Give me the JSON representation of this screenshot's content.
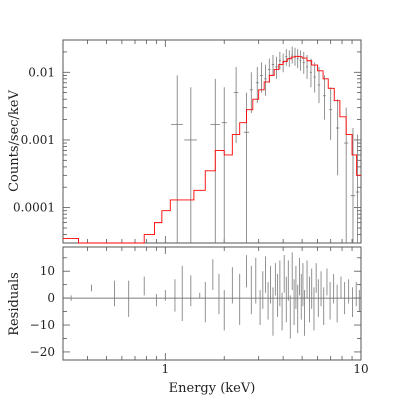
{
  "chart_data": [
    {
      "type": "scatter",
      "panel": "top",
      "xscale": "log",
      "yscale": "log",
      "xlim": [
        0.3,
        10
      ],
      "ylim": [
        3e-05,
        0.03
      ],
      "ylabel": "Counts/sec/keV",
      "yticks": [
        0.0001,
        0.001,
        0.01
      ],
      "ytick_labels": [
        "0.0001",
        "0.001",
        "0.01"
      ],
      "series": [
        {
          "kind": "data-points",
          "points": [
            {
              "x": 1.15,
              "y": 0.0017,
              "xerr": 0.08,
              "yup": 0.009,
              "ydn": 3e-05
            },
            {
              "x": 1.35,
              "y": 0.001,
              "xerr": 0.1,
              "yup": 0.006,
              "ydn": 3e-05
            },
            {
              "x": 1.8,
              "y": 0.0017,
              "xerr": 0.1,
              "yup": 0.008,
              "ydn": 3e-05
            },
            {
              "x": 2.0,
              "y": 0.0018,
              "xerr": 0.06,
              "yup": 0.006,
              "ydn": 3e-05
            },
            {
              "x": 2.3,
              "y": 0.005,
              "xerr": 0.06,
              "yup": 0.012,
              "ydn": 0.0009
            },
            {
              "x": 2.6,
              "y": 0.0013,
              "xerr": 0.08,
              "yup": 0.005,
              "ydn": 3e-05
            },
            {
              "x": 2.75,
              "y": 0.0055,
              "xerr": 0.05,
              "yup": 0.01,
              "ydn": 0.0025
            },
            {
              "x": 2.95,
              "y": 0.007,
              "xerr": 0.05,
              "yup": 0.012,
              "ydn": 0.0035
            },
            {
              "x": 3.1,
              "y": 0.009,
              "xerr": 0.05,
              "yup": 0.014,
              "ydn": 0.005
            },
            {
              "x": 3.25,
              "y": 0.008,
              "xerr": 0.05,
              "yup": 0.013,
              "ydn": 0.0045
            },
            {
              "x": 3.4,
              "y": 0.011,
              "xerr": 0.05,
              "yup": 0.016,
              "ydn": 0.007
            },
            {
              "x": 3.55,
              "y": 0.013,
              "xerr": 0.05,
              "yup": 0.018,
              "ydn": 0.009
            },
            {
              "x": 3.7,
              "y": 0.012,
              "xerr": 0.05,
              "yup": 0.017,
              "ydn": 0.008
            },
            {
              "x": 3.85,
              "y": 0.015,
              "xerr": 0.05,
              "yup": 0.02,
              "ydn": 0.011
            },
            {
              "x": 4.0,
              "y": 0.014,
              "xerr": 0.05,
              "yup": 0.019,
              "ydn": 0.01
            },
            {
              "x": 4.15,
              "y": 0.017,
              "xerr": 0.05,
              "yup": 0.022,
              "ydn": 0.0125
            },
            {
              "x": 4.3,
              "y": 0.016,
              "xerr": 0.05,
              "yup": 0.021,
              "ydn": 0.012
            },
            {
              "x": 4.45,
              "y": 0.018,
              "xerr": 0.05,
              "yup": 0.024,
              "ydn": 0.0135
            },
            {
              "x": 4.6,
              "y": 0.017,
              "xerr": 0.05,
              "yup": 0.023,
              "ydn": 0.0125
            },
            {
              "x": 4.75,
              "y": 0.016,
              "xerr": 0.05,
              "yup": 0.022,
              "ydn": 0.0115
            },
            {
              "x": 4.9,
              "y": 0.015,
              "xerr": 0.05,
              "yup": 0.021,
              "ydn": 0.0105
            },
            {
              "x": 5.1,
              "y": 0.014,
              "xerr": 0.06,
              "yup": 0.02,
              "ydn": 0.0095
            },
            {
              "x": 5.3,
              "y": 0.012,
              "xerr": 0.06,
              "yup": 0.018,
              "ydn": 0.008
            },
            {
              "x": 5.55,
              "y": 0.01,
              "xerr": 0.07,
              "yup": 0.016,
              "ydn": 0.006
            },
            {
              "x": 5.8,
              "y": 0.0085,
              "xerr": 0.08,
              "yup": 0.014,
              "ydn": 0.005
            },
            {
              "x": 6.1,
              "y": 0.0065,
              "xerr": 0.09,
              "yup": 0.012,
              "ydn": 0.0035
            },
            {
              "x": 6.5,
              "y": 0.0045,
              "xerr": 0.1,
              "yup": 0.009,
              "ydn": 0.002
            },
            {
              "x": 7.0,
              "y": 0.0028,
              "xerr": 0.12,
              "yup": 0.006,
              "ydn": 0.001
            },
            {
              "x": 7.6,
              "y": 0.0015,
              "xerr": 0.15,
              "yup": 0.004,
              "ydn": 0.0003
            },
            {
              "x": 8.4,
              "y": 0.0009,
              "xerr": 0.2,
              "yup": 0.003,
              "ydn": 3e-05
            },
            {
              "x": 9.1,
              "y": 0.00015,
              "xerr": 0.25,
              "yup": 0.0015,
              "ydn": 3e-05
            },
            {
              "x": 9.6,
              "y": 0.00017,
              "xerr": 0.2,
              "yup": 0.0012,
              "ydn": 3e-05
            }
          ]
        },
        {
          "kind": "model",
          "color": "#ff0000",
          "edges": [
            0.3,
            0.36,
            0.5,
            0.78,
            0.88,
            0.96,
            1.06,
            1.4,
            1.6,
            1.8,
            2.0,
            2.2,
            2.4,
            2.6,
            2.8,
            3.0,
            3.2,
            3.4,
            3.6,
            3.8,
            4.0,
            4.2,
            4.4,
            4.6,
            4.8,
            5.0,
            5.3,
            5.6,
            6.0,
            6.4,
            6.8,
            7.3,
            7.8,
            8.4,
            9.0,
            9.5,
            10.0
          ],
          "values": [
            3.5e-05,
            3e-05,
            3e-05,
            4e-05,
            6e-05,
            9e-05,
            0.00013,
            0.00018,
            0.00035,
            0.0007,
            0.0006,
            0.0012,
            0.0018,
            0.0028,
            0.004,
            0.0055,
            0.0072,
            0.009,
            0.011,
            0.013,
            0.0145,
            0.0158,
            0.0168,
            0.0172,
            0.017,
            0.0162,
            0.0148,
            0.0128,
            0.0105,
            0.008,
            0.0058,
            0.0038,
            0.0022,
            0.0012,
            0.0006,
            0.0003
          ]
        }
      ]
    },
    {
      "type": "scatter",
      "panel": "bottom",
      "xscale": "log",
      "xlim": [
        0.3,
        10
      ],
      "ylim": [
        -23,
        19
      ],
      "xlabel": "Energy (keV)",
      "ylabel": "Residuals",
      "xticks": [
        1,
        10
      ],
      "xtick_labels": [
        "1",
        "10"
      ],
      "yticks": [
        10,
        0,
        -10,
        -20
      ],
      "ytick_labels": [
        "10",
        "0",
        "−10",
        "−20"
      ],
      "zero_line": 0,
      "series": [
        {
          "kind": "residual-bars",
          "bars": [
            [
              0.33,
              -1.0,
              1.0
            ],
            [
              0.42,
              2.5,
              5.0
            ],
            [
              0.55,
              -3.0,
              6.5
            ],
            [
              0.65,
              -7.0,
              6.5
            ],
            [
              0.78,
              1.0,
              8.0
            ],
            [
              0.9,
              -3.0,
              1.5
            ],
            [
              1.0,
              -1.0,
              3.0
            ],
            [
              1.12,
              -5.0,
              7.0
            ],
            [
              1.22,
              -8.5,
              12.0
            ],
            [
              1.35,
              -3.0,
              8.5
            ],
            [
              1.5,
              0.0,
              2.0
            ],
            [
              1.6,
              -9.0,
              6.0
            ],
            [
              1.75,
              3.0,
              14.5
            ],
            [
              1.88,
              -6.0,
              9.0
            ],
            [
              2.0,
              -12.0,
              3.0
            ],
            [
              2.2,
              -2.0,
              11.5
            ],
            [
              2.4,
              -10.0,
              9.0
            ],
            [
              2.6,
              4.0,
              16.0
            ],
            [
              2.75,
              -6.0,
              12.0
            ],
            [
              2.9,
              -2.0,
              15.0
            ],
            [
              3.05,
              -10.0,
              3.0
            ],
            [
              3.15,
              -4.0,
              10.0
            ],
            [
              3.25,
              2.0,
              15.5
            ],
            [
              3.35,
              -8.0,
              6.0
            ],
            [
              3.45,
              -2.0,
              12.0
            ],
            [
              3.55,
              -14.0,
              4.0
            ],
            [
              3.65,
              1.0,
              13.0
            ],
            [
              3.75,
              -7.0,
              9.0
            ],
            [
              3.85,
              -3.0,
              14.0
            ],
            [
              3.95,
              -12.0,
              2.0
            ],
            [
              4.05,
              2.0,
              16.0
            ],
            [
              4.15,
              -9.0,
              8.0
            ],
            [
              4.25,
              -1.0,
              14.0
            ],
            [
              4.35,
              -15.0,
              1.0
            ],
            [
              4.45,
              3.0,
              17.0
            ],
            [
              4.55,
              -10.0,
              7.0
            ],
            [
              4.65,
              -4.0,
              12.0
            ],
            [
              4.75,
              -13.0,
              5.0
            ],
            [
              4.85,
              1.0,
              15.0
            ],
            [
              4.95,
              -8.0,
              9.0
            ],
            [
              5.05,
              -3.0,
              13.0
            ],
            [
              5.15,
              -14.0,
              3.0
            ],
            [
              5.3,
              0.0,
              14.0
            ],
            [
              5.45,
              -9.0,
              8.0
            ],
            [
              5.6,
              -4.0,
              11.0
            ],
            [
              5.75,
              -12.0,
              4.0
            ],
            [
              5.9,
              2.0,
              13.0
            ],
            [
              6.05,
              -7.0,
              7.0
            ],
            [
              6.25,
              -3.0,
              10.0
            ],
            [
              6.45,
              -10.0,
              4.0
            ],
            [
              6.7,
              1.0,
              11.0
            ],
            [
              6.95,
              -8.0,
              6.0
            ],
            [
              7.25,
              -2.0,
              9.0
            ],
            [
              7.55,
              -9.0,
              5.0
            ],
            [
              7.9,
              0.0,
              8.0
            ],
            [
              8.25,
              -6.0,
              6.0
            ],
            [
              8.65,
              -2.0,
              7.0
            ],
            [
              9.05,
              -7.0,
              4.0
            ],
            [
              9.45,
              -3.0,
              6.0
            ],
            [
              9.8,
              -5.0,
              3.0
            ]
          ]
        }
      ]
    }
  ]
}
